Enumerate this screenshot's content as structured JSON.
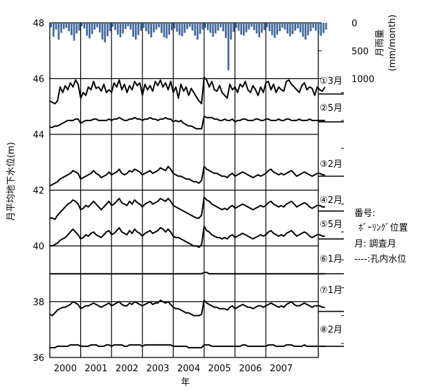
{
  "chart_data": {
    "type": "line",
    "xlabel": "年",
    "ylabel": "月平均地下水位(m)",
    "y2label": "月雨量",
    "y2unit": "(mm/month)",
    "ylim": [
      36,
      48
    ],
    "yticks": [
      "36",
      "38",
      "40",
      "42",
      "44",
      "46",
      "48"
    ],
    "y2ticks": [
      "0",
      "500",
      "1000"
    ],
    "xlim": [
      2000,
      2008.7
    ],
    "xticks": [
      "2000",
      "2001",
      "2002",
      "2003",
      "2004",
      "2005",
      "2006",
      "2007"
    ],
    "rain_ylim": [
      0,
      1000
    ],
    "rain": [
      80,
      250,
      120,
      300,
      180,
      110,
      90,
      150,
      220,
      320,
      190,
      140,
      60,
      100,
      230,
      280,
      200,
      120,
      80,
      170,
      300,
      350,
      240,
      150,
      70,
      130,
      210,
      260,
      190,
      110,
      60,
      120,
      250,
      300,
      220,
      140,
      90,
      150,
      200,
      260,
      170,
      120,
      80,
      180,
      260,
      280,
      210,
      130,
      100,
      160,
      220,
      240,
      180,
      110,
      70,
      140,
      230,
      300,
      200,
      120,
      90,
      130,
      180,
      250,
      190,
      140,
      80,
      150,
      270,
      850,
      300,
      160,
      90,
      140,
      210,
      230,
      170,
      120,
      70,
      130,
      190,
      260,
      180,
      130,
      80,
      150,
      220,
      270,
      210,
      150,
      90,
      120,
      190,
      240,
      200,
      140,
      100,
      170,
      250,
      300,
      220,
      150,
      90,
      140,
      200,
      230,
      180,
      120
    ],
    "series": [
      {
        "name": "①3月",
        "label_lines": [
          "①3月",
          "②5月"
        ],
        "casing": 45.45,
        "values": [
          45.2,
          45.15,
          45.1,
          45.2,
          45.7,
          45.5,
          45.75,
          45.6,
          45.85,
          45.7,
          45.95,
          45.8,
          45.3,
          45.5,
          45.4,
          45.7,
          45.6,
          45.9,
          45.65,
          45.7,
          45.55,
          45.8,
          45.5,
          45.6,
          45.5,
          45.85,
          45.7,
          45.95,
          45.6,
          45.8,
          45.5,
          45.75,
          45.6,
          45.9,
          45.75,
          45.85,
          45.4,
          45.8,
          45.6,
          45.75,
          45.55,
          45.9,
          45.75,
          45.95,
          45.7,
          45.85,
          45.6,
          45.9,
          45.5,
          45.7,
          45.3,
          45.8,
          45.55,
          45.7,
          45.4,
          45.65,
          45.5,
          45.35,
          45.2,
          45.1,
          46.05,
          45.95,
          45.7,
          45.9,
          45.6,
          45.55,
          45.75,
          45.5,
          45.4,
          45.3,
          45.8,
          45.6,
          45.7,
          45.5,
          45.8,
          45.7,
          45.9,
          45.6,
          45.5,
          45.75,
          45.6,
          45.4,
          45.7,
          45.5,
          45.85,
          45.9,
          45.6,
          45.8,
          45.5,
          45.7,
          45.6,
          45.55,
          45.9,
          45.95,
          45.8,
          45.7,
          45.6,
          45.5,
          45.75,
          45.85,
          45.6,
          45.7,
          45.65,
          45.4,
          45.7,
          45.6,
          45.55,
          45.7
        ]
      },
      {
        "name": "②5月",
        "label_lines": [],
        "casing": 44.45,
        "values": [
          44.25,
          44.25,
          44.3,
          44.3,
          44.35,
          44.4,
          44.45,
          44.5,
          44.5,
          44.5,
          44.55,
          44.55,
          44.4,
          44.45,
          44.5,
          44.5,
          44.5,
          44.55,
          44.55,
          44.5,
          44.5,
          44.5,
          44.5,
          44.55,
          44.5,
          44.55,
          44.55,
          44.6,
          44.55,
          44.5,
          44.5,
          44.55,
          44.55,
          44.6,
          44.55,
          44.55,
          44.5,
          44.55,
          44.55,
          44.6,
          44.55,
          44.55,
          44.5,
          44.55,
          44.55,
          44.6,
          44.55,
          44.55,
          44.45,
          44.5,
          44.45,
          44.5,
          44.4,
          44.35,
          44.3,
          44.3,
          44.25,
          44.2,
          44.2,
          44.2,
          44.65,
          44.6,
          44.6,
          44.6,
          44.55,
          44.55,
          44.5,
          44.5,
          44.55,
          44.5,
          44.5,
          44.55,
          44.45,
          44.5,
          44.5,
          44.55,
          44.55,
          44.5,
          44.5,
          44.5,
          44.55,
          44.55,
          44.5,
          44.5,
          44.55,
          44.55,
          44.5,
          44.5,
          44.5,
          44.55,
          44.5,
          44.5,
          44.55,
          44.55,
          44.5,
          44.5,
          44.5,
          44.55,
          44.5,
          44.5,
          44.5,
          44.55,
          44.5,
          44.5,
          44.5,
          44.5,
          44.5,
          44.5
        ]
      },
      {
        "name": "③2月",
        "label_lines": [
          "③2月"
        ],
        "casing": 42.5,
        "values": [
          42.15,
          42.2,
          42.25,
          42.3,
          42.4,
          42.45,
          42.5,
          42.55,
          42.6,
          42.7,
          42.65,
          42.6,
          42.4,
          42.45,
          42.5,
          42.55,
          42.6,
          42.7,
          42.6,
          42.55,
          42.45,
          42.5,
          42.55,
          42.65,
          42.55,
          42.6,
          42.65,
          42.75,
          42.6,
          42.55,
          42.6,
          42.7,
          42.65,
          42.75,
          42.7,
          42.65,
          42.55,
          42.6,
          42.65,
          42.7,
          42.6,
          42.65,
          42.7,
          42.8,
          42.75,
          42.7,
          42.85,
          42.75,
          42.6,
          42.55,
          42.5,
          42.5,
          42.45,
          42.4,
          42.4,
          42.35,
          42.3,
          42.3,
          42.25,
          42.35,
          42.85,
          42.75,
          42.7,
          42.65,
          42.6,
          42.6,
          42.55,
          42.5,
          42.5,
          42.45,
          42.55,
          42.6,
          42.5,
          42.55,
          42.6,
          42.65,
          42.6,
          42.55,
          42.5,
          42.45,
          42.5,
          42.55,
          42.5,
          42.55,
          42.6,
          42.7,
          42.75,
          42.65,
          42.6,
          42.55,
          42.6,
          42.55,
          42.6,
          42.65,
          42.7,
          42.6,
          42.5,
          42.55,
          42.6,
          42.65,
          42.6,
          42.55,
          42.5,
          42.55,
          42.6,
          42.6,
          42.55,
          42.55
        ]
      },
      {
        "name": "④2月",
        "label_lines": [
          "④2月"
        ],
        "casing": 41.25,
        "values": [
          41.0,
          41.0,
          40.95,
          41.1,
          41.2,
          41.3,
          41.4,
          41.5,
          41.55,
          41.65,
          41.6,
          41.5,
          41.3,
          41.35,
          41.45,
          41.4,
          41.5,
          41.6,
          41.5,
          41.4,
          41.3,
          41.4,
          41.5,
          41.6,
          41.45,
          41.5,
          41.6,
          41.7,
          41.55,
          41.5,
          41.45,
          41.6,
          41.5,
          41.65,
          41.55,
          41.5,
          41.4,
          41.5,
          41.55,
          41.6,
          41.5,
          41.55,
          41.6,
          41.7,
          41.65,
          41.6,
          41.7,
          41.6,
          41.45,
          41.4,
          41.35,
          41.3,
          41.25,
          41.2,
          41.15,
          41.1,
          41.05,
          41.0,
          41.0,
          41.1,
          41.75,
          41.65,
          41.6,
          41.5,
          41.45,
          41.4,
          41.35,
          41.3,
          41.35,
          41.3,
          41.4,
          41.45,
          41.35,
          41.4,
          41.45,
          41.5,
          41.45,
          41.4,
          41.35,
          41.3,
          41.35,
          41.4,
          41.45,
          41.4,
          41.45,
          41.55,
          41.6,
          41.5,
          41.45,
          41.4,
          41.45,
          41.4,
          41.5,
          41.55,
          41.6,
          41.5,
          41.4,
          41.45,
          41.5,
          41.55,
          41.5,
          41.4,
          41.35,
          41.4,
          41.45,
          41.45,
          41.4,
          41.4
        ]
      },
      {
        "name": "⑤5月",
        "label_lines": [
          "⑤5月"
        ],
        "casing": 40.25,
        "values": [
          40.0,
          40.0,
          40.05,
          40.1,
          40.2,
          40.25,
          40.3,
          40.4,
          40.5,
          40.6,
          40.5,
          40.4,
          40.25,
          40.3,
          40.4,
          40.35,
          40.45,
          40.5,
          40.4,
          40.35,
          40.3,
          40.4,
          40.5,
          40.55,
          40.4,
          40.45,
          40.55,
          40.65,
          40.5,
          40.45,
          40.4,
          40.55,
          40.45,
          40.6,
          40.5,
          40.45,
          40.35,
          40.45,
          40.5,
          40.55,
          40.45,
          40.5,
          40.55,
          40.65,
          40.6,
          40.5,
          40.6,
          40.5,
          40.35,
          40.3,
          40.3,
          40.25,
          40.2,
          40.15,
          40.1,
          40.05,
          40.0,
          40.0,
          39.95,
          40.05,
          40.7,
          40.55,
          40.5,
          40.4,
          40.35,
          40.3,
          40.3,
          40.25,
          40.3,
          40.25,
          40.35,
          40.4,
          40.3,
          40.35,
          40.4,
          40.45,
          40.4,
          40.35,
          40.3,
          40.25,
          40.3,
          40.35,
          40.4,
          40.35,
          40.4,
          40.5,
          40.55,
          40.45,
          40.4,
          40.35,
          40.4,
          40.35,
          40.45,
          40.5,
          40.55,
          40.45,
          40.35,
          40.4,
          40.45,
          40.5,
          40.45,
          40.35,
          40.3,
          40.35,
          40.4,
          40.4,
          40.35,
          40.35
        ]
      },
      {
        "name": "⑥1月",
        "label_lines": [
          "⑥1月"
        ],
        "casing": 39.0,
        "values": [
          39.0,
          39.0,
          39.0,
          39.0,
          39.0,
          39.0,
          39.0,
          39.0,
          39.0,
          39.0,
          39.0,
          39.0,
          39.0,
          39.0,
          39.0,
          39.0,
          39.0,
          39.0,
          39.0,
          39.0,
          39.0,
          39.0,
          39.0,
          39.0,
          39.0,
          39.0,
          39.0,
          39.0,
          39.0,
          39.0,
          39.0,
          39.0,
          39.0,
          39.0,
          39.0,
          39.0,
          39.0,
          39.0,
          39.0,
          39.0,
          39.0,
          39.0,
          39.0,
          39.0,
          39.0,
          39.0,
          39.0,
          39.0,
          39.0,
          39.0,
          39.0,
          39.0,
          39.0,
          39.0,
          39.0,
          39.0,
          39.0,
          39.0,
          39.0,
          39.0,
          39.05,
          39.05,
          39.0,
          39.0,
          39.0,
          39.0,
          39.0,
          39.0,
          39.0,
          39.0,
          39.0,
          39.0,
          39.0,
          39.0,
          39.0,
          39.0,
          39.0,
          39.0,
          39.0,
          39.0,
          39.0,
          39.0,
          39.0,
          39.0,
          39.0,
          39.0,
          39.0,
          39.0,
          39.0,
          39.0,
          39.0,
          39.0,
          39.0,
          39.0,
          39.0,
          39.0,
          39.0,
          39.0,
          39.0,
          39.0,
          39.0,
          39.0,
          39.0,
          39.0,
          39.0,
          39.0,
          39.0,
          39.0
        ]
      },
      {
        "name": "⑦1月",
        "label_lines": [
          "⑦1月"
        ],
        "casing": 37.65,
        "values": [
          37.55,
          37.5,
          37.6,
          37.7,
          37.75,
          37.8,
          37.8,
          37.85,
          37.9,
          38.0,
          37.95,
          37.9,
          37.75,
          37.8,
          37.85,
          37.85,
          37.9,
          37.95,
          37.9,
          37.85,
          37.8,
          37.85,
          37.9,
          37.95,
          37.85,
          37.9,
          37.95,
          38.0,
          37.9,
          37.85,
          37.85,
          37.95,
          37.9,
          38.0,
          37.95,
          37.9,
          37.85,
          37.9,
          37.95,
          38.0,
          37.9,
          37.95,
          37.95,
          38.05,
          38.0,
          37.95,
          38.0,
          37.9,
          37.8,
          37.75,
          37.75,
          37.7,
          37.65,
          37.6,
          37.6,
          37.55,
          37.5,
          37.5,
          37.5,
          37.55,
          38.05,
          37.95,
          37.9,
          37.85,
          37.8,
          37.8,
          37.75,
          37.75,
          37.75,
          37.7,
          37.8,
          37.85,
          37.75,
          37.8,
          37.85,
          37.9,
          37.85,
          37.8,
          37.8,
          37.75,
          37.8,
          37.85,
          37.85,
          37.8,
          37.85,
          37.9,
          37.95,
          37.9,
          37.85,
          37.8,
          37.85,
          37.8,
          37.9,
          37.95,
          38.0,
          37.9,
          37.85,
          37.85,
          37.9,
          37.95,
          37.9,
          37.85,
          37.8,
          37.85,
          37.85,
          37.85,
          37.8,
          37.8
        ]
      },
      {
        "name": "⑧2月",
        "label_lines": [
          "⑧2月"
        ],
        "casing": 36.4,
        "values": [
          36.35,
          36.35,
          36.35,
          36.4,
          36.4,
          36.4,
          36.4,
          36.4,
          36.45,
          36.45,
          36.45,
          36.45,
          36.4,
          36.4,
          36.4,
          36.4,
          36.45,
          36.45,
          36.45,
          36.4,
          36.4,
          36.4,
          36.45,
          36.45,
          36.4,
          36.45,
          36.45,
          36.45,
          36.45,
          36.4,
          36.4,
          36.45,
          36.45,
          36.45,
          36.45,
          36.45,
          36.4,
          36.45,
          36.45,
          36.45,
          36.45,
          36.45,
          36.45,
          36.45,
          36.45,
          36.45,
          36.45,
          36.45,
          36.4,
          36.4,
          36.4,
          36.4,
          36.4,
          36.4,
          36.35,
          36.35,
          36.35,
          36.35,
          36.35,
          36.35,
          36.45,
          36.45,
          36.45,
          36.4,
          36.4,
          36.4,
          36.4,
          36.4,
          36.4,
          36.4,
          36.4,
          36.4,
          36.4,
          36.4,
          36.4,
          36.45,
          36.45,
          36.4,
          36.4,
          36.4,
          36.4,
          36.4,
          36.4,
          36.4,
          36.4,
          36.45,
          36.45,
          36.45,
          36.4,
          36.4,
          36.4,
          36.4,
          36.45,
          36.45,
          36.45,
          36.4,
          36.4,
          36.4,
          36.4,
          36.45,
          36.4,
          36.4,
          36.4,
          36.4,
          36.4,
          36.4,
          36.4,
          36.4
        ]
      }
    ],
    "legend": [
      "番号:",
      "ﾎﾞｰﾘﾝｸﾞ位置",
      "月: 調査月",
      "----:孔内水位"
    ],
    "colors": {
      "line": "#000000",
      "rain": "#41689b",
      "frame": "#000000"
    }
  }
}
